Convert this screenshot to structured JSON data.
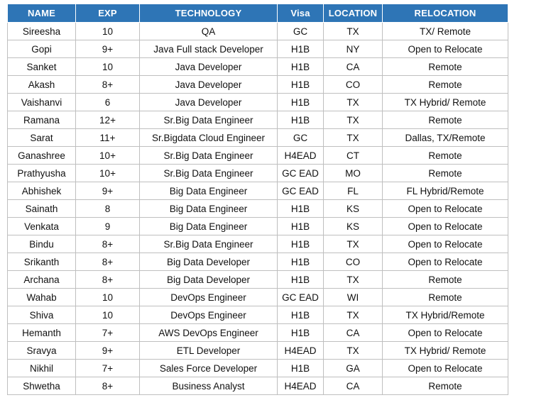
{
  "colors": {
    "header_bg": "#2E75B6",
    "header_text": "#FFFFFF",
    "border": "#BFBFBF",
    "text": "#111111"
  },
  "table": {
    "columns": [
      {
        "key": "name",
        "label": "NAME"
      },
      {
        "key": "exp",
        "label": "EXP"
      },
      {
        "key": "technology",
        "label": "TECHNOLOGY"
      },
      {
        "key": "visa",
        "label": "Visa"
      },
      {
        "key": "location",
        "label": "LOCATION"
      },
      {
        "key": "relocation",
        "label": "RELOCATION"
      }
    ],
    "rows": [
      [
        "Sireesha",
        "10",
        "QA",
        "GC",
        "TX",
        "TX/ Remote"
      ],
      [
        "Gopi",
        "9+",
        "Java Full stack Developer",
        "H1B",
        "NY",
        "Open to Relocate"
      ],
      [
        "Sanket",
        "10",
        "Java Developer",
        "H1B",
        "CA",
        "Remote"
      ],
      [
        "Akash",
        "8+",
        "Java Developer",
        "H1B",
        "CO",
        "Remote"
      ],
      [
        "Vaishanvi",
        "6",
        "Java Developer",
        "H1B",
        "TX",
        "TX Hybrid/ Remote"
      ],
      [
        "Ramana",
        "12+",
        "Sr.Big Data Engineer",
        "H1B",
        "TX",
        "Remote"
      ],
      [
        "Sarat",
        "11+",
        "Sr.Bigdata Cloud Engineer",
        "GC",
        "TX",
        "Dallas, TX/Remote"
      ],
      [
        "Ganashree",
        "10+",
        "Sr.Big Data Engineer",
        "H4EAD",
        "CT",
        "Remote"
      ],
      [
        "Prathyusha",
        "10+",
        "Sr.Big Data Engineer",
        "GC EAD",
        "MO",
        "Remote"
      ],
      [
        "Abhishek",
        "9+",
        "Big Data Engineer",
        "GC EAD",
        "FL",
        "FL Hybrid/Remote"
      ],
      [
        "Sainath",
        "8",
        "Big Data Engineer",
        "H1B",
        "KS",
        "Open to Relocate"
      ],
      [
        "Venkata",
        "9",
        "Big Data Engineer",
        "H1B",
        "KS",
        "Open to Relocate"
      ],
      [
        "Bindu",
        "8+",
        "Sr.Big Data Engineer",
        "H1B",
        "TX",
        "Open to Relocate"
      ],
      [
        "Srikanth",
        "8+",
        "Big Data Developer",
        "H1B",
        "CO",
        "Open to Relocate"
      ],
      [
        "Archana",
        "8+",
        "Big Data Developer",
        "H1B",
        "TX",
        "Remote"
      ],
      [
        "Wahab",
        "10",
        "DevOps Engineer",
        "GC EAD",
        "WI",
        "Remote"
      ],
      [
        "Shiva",
        "10",
        "DevOps Engineer",
        "H1B",
        "TX",
        "TX Hybrid/Remote"
      ],
      [
        "Hemanth",
        "7+",
        "AWS DevOps Engineer",
        "H1B",
        "CA",
        "Open to Relocate"
      ],
      [
        "Sravya",
        "9+",
        "ETL Developer",
        "H4EAD",
        "TX",
        "TX Hybrid/ Remote"
      ],
      [
        "Nikhil",
        "7+",
        "Sales Force Developer",
        "H1B",
        "GA",
        "Open to Relocate"
      ],
      [
        "Shwetha",
        "8+",
        "Business Analyst",
        "H4EAD",
        "CA",
        "Remote"
      ]
    ]
  }
}
